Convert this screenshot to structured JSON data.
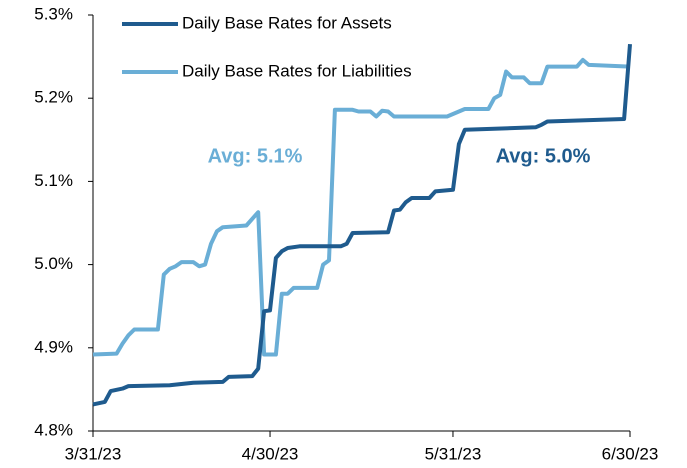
{
  "chart_data": {
    "type": "line",
    "xlim": [
      0,
      91
    ],
    "xticks": [
      {
        "value": 0,
        "label": "3/31/23"
      },
      {
        "value": 30,
        "label": "4/30/23"
      },
      {
        "value": 61,
        "label": "5/31/23"
      },
      {
        "value": 91,
        "label": "6/30/23"
      }
    ],
    "ylim": [
      4.8,
      5.3
    ],
    "yticks": [
      {
        "value": 4.8,
        "label": "4.8%"
      },
      {
        "value": 4.9,
        "label": "4.9%"
      },
      {
        "value": 5.0,
        "label": "5.0%"
      },
      {
        "value": 5.1,
        "label": "5.1%"
      },
      {
        "value": 5.2,
        "label": "5.2%"
      },
      {
        "value": 5.3,
        "label": "5.3%"
      }
    ],
    "legend": "upper left",
    "series": [
      {
        "name": "Daily Base Rates for Assets",
        "color": "#1f5b8e",
        "x": [
          0,
          2,
          3,
          5,
          6,
          13,
          17,
          22,
          23,
          27,
          28,
          29,
          30,
          31,
          32,
          33,
          35,
          42,
          43,
          44,
          50,
          51,
          52,
          53,
          54,
          57,
          58,
          61,
          62,
          63,
          75,
          76,
          77,
          90,
          91
        ],
        "values": [
          4.832,
          4.835,
          4.848,
          4.851,
          4.854,
          4.855,
          4.858,
          4.859,
          4.865,
          4.866,
          4.875,
          4.944,
          4.945,
          5.008,
          5.016,
          5.02,
          5.022,
          5.022,
          5.025,
          5.038,
          5.039,
          5.065,
          5.066,
          5.075,
          5.08,
          5.08,
          5.088,
          5.09,
          5.145,
          5.162,
          5.165,
          5.168,
          5.172,
          5.175,
          5.265
        ]
      },
      {
        "name": "Daily Base Rates for Liabilities",
        "color": "#6aaed6",
        "x": [
          0,
          4,
          5,
          6,
          7,
          11,
          12,
          13,
          14,
          15,
          17,
          18,
          19,
          20,
          21,
          22,
          26,
          27,
          28,
          29,
          31,
          32,
          33,
          34,
          38,
          39,
          40,
          41,
          44,
          45,
          47,
          48,
          49,
          50,
          51,
          60,
          63,
          67,
          68,
          69,
          70,
          71,
          73,
          74,
          76,
          77,
          82,
          83,
          84,
          91
        ],
        "values": [
          4.892,
          4.893,
          4.905,
          4.915,
          4.922,
          4.922,
          4.988,
          4.995,
          4.998,
          5.003,
          5.003,
          4.998,
          5.0,
          5.025,
          5.04,
          5.045,
          5.047,
          5.055,
          5.063,
          4.892,
          4.892,
          4.965,
          4.965,
          4.972,
          4.972,
          5.0,
          5.005,
          5.186,
          5.186,
          5.184,
          5.184,
          5.178,
          5.185,
          5.184,
          5.178,
          5.178,
          5.187,
          5.187,
          5.2,
          5.204,
          5.232,
          5.225,
          5.225,
          5.218,
          5.218,
          5.238,
          5.238,
          5.246,
          5.24,
          5.238
        ]
      }
    ],
    "annotations": [
      {
        "text": "Avg: 5.1%",
        "series": 1
      },
      {
        "text": "Avg: 5.0%",
        "series": 0
      }
    ]
  }
}
